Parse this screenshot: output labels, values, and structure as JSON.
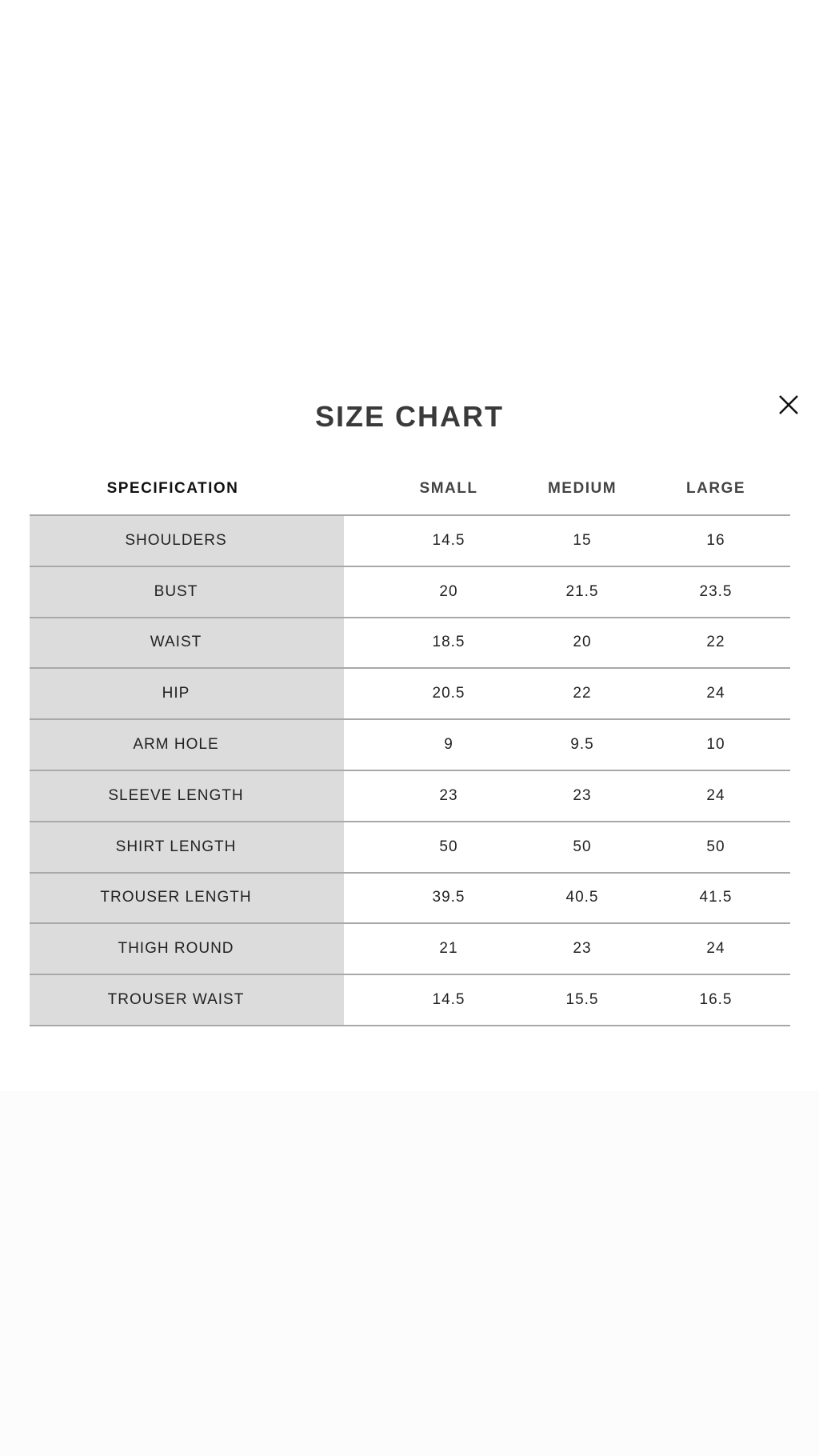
{
  "title": "SIZE CHART",
  "close_icon": "close-icon",
  "columns": [
    "SPECIFICATION",
    "SMALL",
    "MEDIUM",
    "LARGE"
  ],
  "colors": {
    "spec_column_bg": "#dcdcdc",
    "row_border": "#a8a8a8"
  },
  "rows": [
    {
      "spec": "SHOULDERS",
      "small": "14.5",
      "medium": "15",
      "large": "16"
    },
    {
      "spec": "BUST",
      "small": "20",
      "medium": "21.5",
      "large": "23.5"
    },
    {
      "spec": "WAIST",
      "small": "18.5",
      "medium": "20",
      "large": "22"
    },
    {
      "spec": "HIP",
      "small": "20.5",
      "medium": "22",
      "large": "24"
    },
    {
      "spec": "ARM HOLE",
      "small": "9",
      "medium": "9.5",
      "large": "10"
    },
    {
      "spec": "SLEEVE LENGTH",
      "small": "23",
      "medium": "23",
      "large": "24"
    },
    {
      "spec": "SHIRT LENGTH",
      "small": "50",
      "medium": "50",
      "large": "50"
    },
    {
      "spec": "TROUSER LENGTH",
      "small": "39.5",
      "medium": "40.5",
      "large": "41.5"
    },
    {
      "spec": "THIGH ROUND",
      "small": "21",
      "medium": "23",
      "large": "24"
    },
    {
      "spec": "TROUSER WAIST",
      "small": "14.5",
      "medium": "15.5",
      "large": "16.5"
    }
  ]
}
